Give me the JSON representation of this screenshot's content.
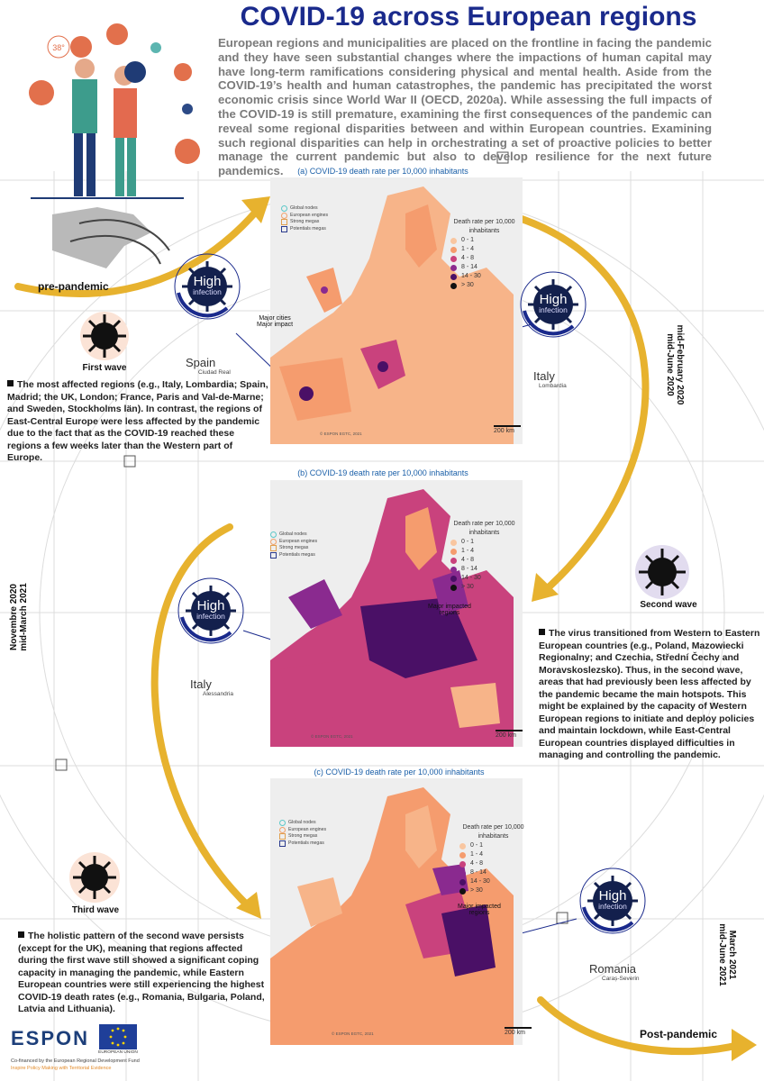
{
  "header": {
    "title": "COVID-19 across European regions",
    "intro": "European regions and municipalities are placed on the frontline in facing the pandemic and they have seen substantial changes where the impactions of human capital may have long-term ramifications considering physical and mental health. Aside from the COVID-19’s health and human catastrophes, the pandemic has precipitated the worst economic crisis since World War II (OECD, 2020a). While assessing the full impacts of the COVID-19 is still premature, examining the first consequences of the pandemic can reveal some regional disparities between and within European countries. Examining such regional disparities can help in orchestrating a set of proactive policies to better manage the current pandemic but also to develop resilience for the next future pandemics."
  },
  "illustration": {
    "thermometer": "38°"
  },
  "phases": {
    "pre": "pre-pandemic",
    "post": "Post-pandemic"
  },
  "legend_common": {
    "title": "Death rate per 10,000 inhabitants",
    "classes": [
      {
        "label": "0 - 1",
        "color": "#f9c6a0"
      },
      {
        "label": "1 - 4",
        "color": "#f59c6e"
      },
      {
        "label": "4 - 8",
        "color": "#c9427d"
      },
      {
        "label": "8 - 14",
        "color": "#8a2a8f"
      },
      {
        "label": "14 - 30",
        "color": "#4a1066"
      },
      {
        "label": "> 30",
        "color": "#111111"
      }
    ],
    "nodes": [
      "Global nodes",
      "European engines",
      "Strong megas",
      "Potentials megas"
    ],
    "copyright": "© ESPON EGTC, 2021",
    "scale": "200 km"
  },
  "maps": [
    {
      "caption": "(a) COVID-19 death rate per 10,000 inhabitants",
      "annotation_1": "Major cities",
      "annotation_2": "Major impact",
      "period": "mid-February 2020",
      "period2": "mid-June 2020"
    },
    {
      "caption": "(b) COVID-19 death rate per 10,000 inhabitants",
      "annotation_1": "Major impacted",
      "annotation_2": "regions",
      "period": "Novembre 2020",
      "period2": "mid-March 2021"
    },
    {
      "caption": "(c) COVID-19 death rate per 10,000 inhabitants",
      "annotation_1": "Major impacted",
      "annotation_2": "regions",
      "period": "March 2021",
      "period2": "mid-June 2021"
    }
  ],
  "badges": [
    {
      "high": "High",
      "infection": "infection",
      "region": "Spain",
      "sub": "Ciudad Real"
    },
    {
      "high": "High",
      "infection": "infection",
      "region": "Italy",
      "sub": "Lombardia"
    },
    {
      "high": "High",
      "infection": "infection",
      "region": "Italy",
      "sub": "Alessandria"
    },
    {
      "high": "High",
      "infection": "infection",
      "region": "Romania",
      "sub": "Caraș-Severin"
    }
  ],
  "waves": [
    {
      "label": "First wave",
      "text": "The most affected regions (e.g., Italy, Lombardia; Spain, Madrid; the UK, London; France, Paris and Val-de-Marne; and Sweden, Stockholms län). In contrast, the regions of East-Central Europe were less affected by the pandemic due to the fact that as the COVID-19 reached these regions a few weeks later than the Western part of Europe."
    },
    {
      "label": "Second wave",
      "text": "The virus transitioned from Western to Eastern European countries (e.g., Poland, Mazowiecki Regionalny; and Czechia, Střední Čechy and Moravskoslezsko). Thus, in the second wave, areas that had previously been less affected by the pandemic became the main hotspots. This might be explained by the capacity of Western European regions to initiate and deploy policies and maintain lockdown, while East-Central European countries displayed difficulties in managing and controlling the pandemic."
    },
    {
      "label": "Third wave",
      "text": "The holistic pattern of the second wave persists (except for the UK), meaning that regions affected during the first wave still showed a significant coping capacity in managing the pandemic, while Eastern European countries were still experiencing the highest COVID-19 death rates (e.g., Romania, Bulgaria, Poland, Latvia and Lithuania)."
    }
  ],
  "footer": {
    "espon": "ESPON",
    "eu": "EUROPEAN UNION",
    "cofinanced": "Co-financed by the European Regional Development Fund",
    "inspire": "Inspire Policy Making with Territorial Evidence"
  },
  "colors": {
    "title": "#1a2a8c",
    "arrow": "#e7b22e",
    "badge": "#13204d",
    "ring": "#1a2a8c"
  }
}
